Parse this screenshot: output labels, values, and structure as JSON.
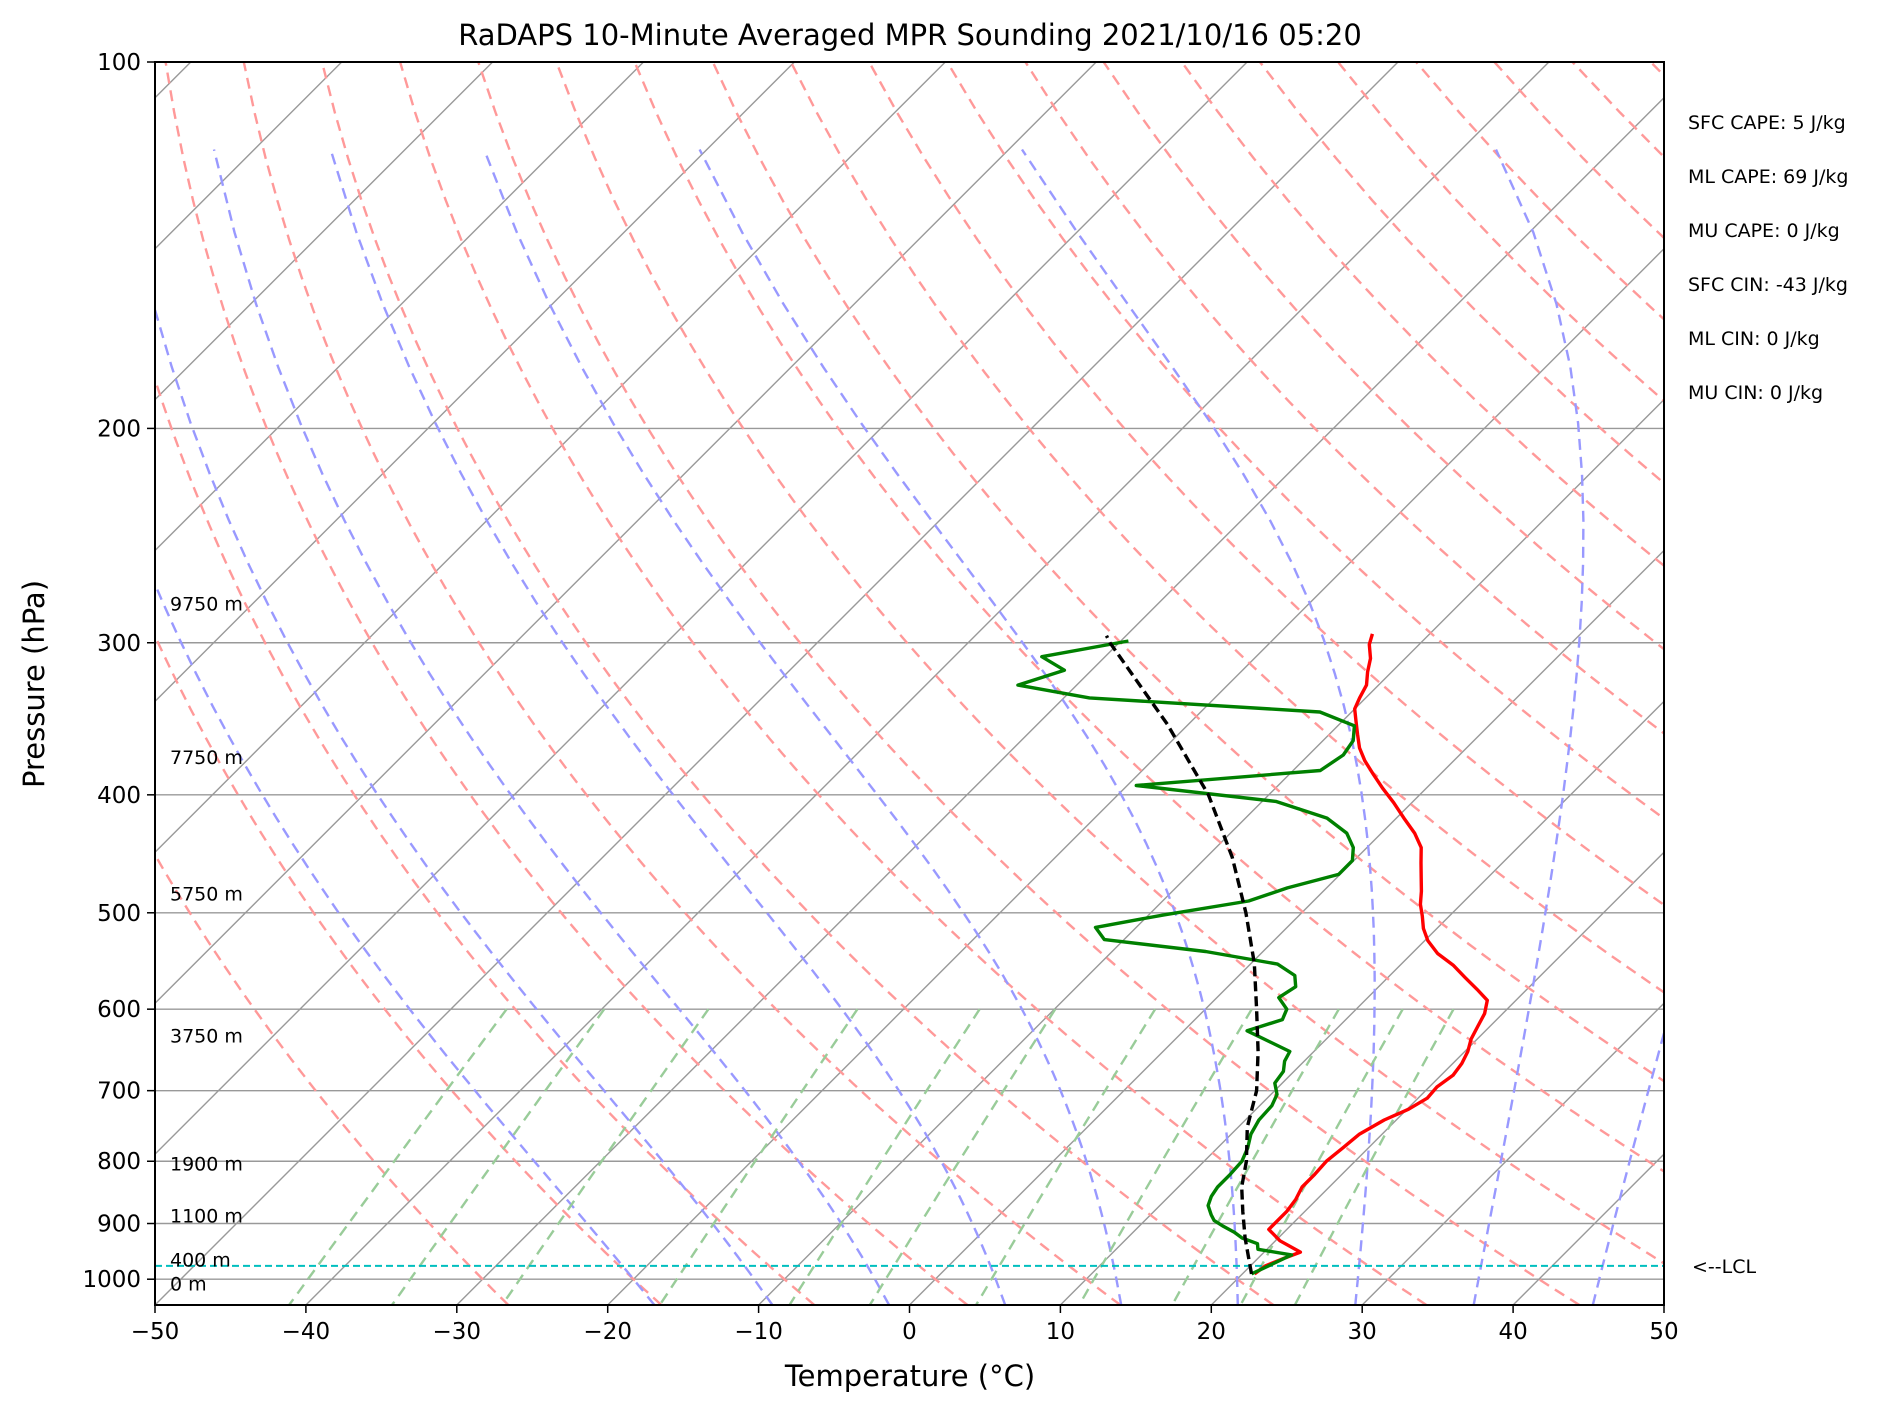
{
  "chart_data": {
    "type": "line",
    "title": "RaDAPS 10-Minute Averaged MPR Sounding 2021/10/16 05:20",
    "xlabel": "Temperature (°C)",
    "ylabel": "Pressure (hPa)",
    "xlim": [
      -50,
      50
    ],
    "ylim": [
      1050,
      100
    ],
    "y_scale": "log",
    "grid": true,
    "x_ticks": [
      -50,
      -40,
      -30,
      -20,
      -10,
      0,
      10,
      20,
      30,
      40,
      50
    ],
    "x_tick_labels": [
      "−50",
      "−40",
      "−30",
      "−20",
      "−10",
      "0",
      "10",
      "20",
      "30",
      "40",
      "50"
    ],
    "y_ticks": [
      100,
      200,
      300,
      400,
      500,
      600,
      700,
      800,
      900,
      1000
    ],
    "y_tick_labels": [
      "100",
      "200",
      "300",
      "400",
      "500",
      "600",
      "700",
      "800",
      "900",
      "1000"
    ],
    "colors": {
      "temperature": "#ff0000",
      "dewpoint": "#008000",
      "parcel": "#000000",
      "dry_adiabats": "#ff9999",
      "moist_adiabats": "#9999ff",
      "mixing_ratio": "#99cc99",
      "isotherms": "#999999",
      "lcl": "#00bfbf"
    },
    "series": [
      {
        "kind": "temperature",
        "points": [
          [
            20.8,
            990
          ],
          [
            21.0,
            975
          ],
          [
            21.8,
            960
          ],
          [
            22.4,
            950
          ],
          [
            20.3,
            930
          ],
          [
            18.8,
            910
          ],
          [
            18.8,
            880
          ],
          [
            18.6,
            860
          ],
          [
            18.2,
            840
          ],
          [
            18.2,
            820
          ],
          [
            18.1,
            800
          ],
          [
            18.3,
            780
          ],
          [
            18.5,
            760
          ],
          [
            19.2,
            740
          ],
          [
            20.1,
            725
          ],
          [
            20.6,
            710
          ],
          [
            20.5,
            695
          ],
          [
            20.8,
            680
          ],
          [
            20.6,
            665
          ],
          [
            20.2,
            650
          ],
          [
            19.6,
            635
          ],
          [
            19.2,
            620
          ],
          [
            18.8,
            605
          ],
          [
            18.1,
            590
          ],
          [
            16.7,
            578
          ],
          [
            15.1,
            565
          ],
          [
            13.5,
            552
          ],
          [
            11.7,
            540
          ],
          [
            10.2,
            527
          ],
          [
            9.1,
            515
          ],
          [
            8.2,
            503
          ],
          [
            7.3,
            492
          ],
          [
            6.5,
            480
          ],
          [
            5.6,
            468
          ],
          [
            4.6,
            455
          ],
          [
            3.6,
            442
          ],
          [
            2.2,
            430
          ],
          [
            0.5,
            418
          ],
          [
            -1.2,
            406
          ],
          [
            -2.9,
            395
          ],
          [
            -4.4,
            385
          ],
          [
            -5.9,
            375
          ],
          [
            -7.1,
            366
          ],
          [
            -8.1,
            357
          ],
          [
            -9.1,
            348
          ],
          [
            -10.0,
            340
          ],
          [
            -10.4,
            333
          ],
          [
            -10.8,
            325
          ],
          [
            -11.6,
            317
          ],
          [
            -12.3,
            309
          ],
          [
            -13.3,
            301
          ],
          [
            -13.8,
            295
          ]
        ]
      },
      {
        "kind": "dewpoint",
        "points": [
          [
            20.6,
            990
          ],
          [
            21.6,
            965
          ],
          [
            22.0,
            955
          ],
          [
            19.4,
            945
          ],
          [
            19.0,
            935
          ],
          [
            17.6,
            925
          ],
          [
            16.7,
            915
          ],
          [
            15.6,
            905
          ],
          [
            14.6,
            895
          ],
          [
            14.0,
            885
          ],
          [
            13.2,
            870
          ],
          [
            12.8,
            855
          ],
          [
            12.6,
            840
          ],
          [
            12.6,
            820
          ],
          [
            12.5,
            800
          ],
          [
            12.0,
            780
          ],
          [
            11.3,
            760
          ],
          [
            10.9,
            740
          ],
          [
            10.8,
            720
          ],
          [
            10.4,
            705
          ],
          [
            9.5,
            690
          ],
          [
            9.3,
            675
          ],
          [
            8.7,
            662
          ],
          [
            8.4,
            650
          ],
          [
            6.4,
            638
          ],
          [
            4.2,
            625
          ],
          [
            5.8,
            612
          ],
          [
            5.4,
            600
          ],
          [
            4.1,
            587
          ],
          [
            4.5,
            575
          ],
          [
            3.7,
            563
          ],
          [
            1.8,
            551
          ],
          [
            -3.8,
            538
          ],
          [
            -11.3,
            526
          ],
          [
            -12.7,
            514
          ],
          [
            -9.0,
            502
          ],
          [
            -4.3,
            489
          ],
          [
            -2.6,
            477
          ],
          [
            -0.1,
            465
          ],
          [
            -0.1,
            453
          ],
          [
            -0.9,
            442
          ],
          [
            -2.3,
            430
          ],
          [
            -4.6,
            418
          ],
          [
            -9.1,
            405
          ],
          [
            -19.4,
            393
          ],
          [
            -8.2,
            382
          ],
          [
            -7.7,
            371
          ],
          [
            -8.0,
            361
          ],
          [
            -8.9,
            351
          ],
          [
            -12.1,
            342
          ],
          [
            -28.3,
            333
          ],
          [
            -33.9,
            325
          ],
          [
            -31.8,
            316
          ],
          [
            -34.2,
            308
          ],
          [
            -29.5,
            299
          ]
        ]
      },
      {
        "kind": "parcel",
        "points": [
          [
            20.6,
            990
          ],
          [
            17.8,
            925
          ],
          [
            15.9,
            880
          ],
          [
            14.2,
            840
          ],
          [
            12.8,
            800
          ],
          [
            10.6,
            750
          ],
          [
            8.8,
            700
          ],
          [
            6.3,
            650
          ],
          [
            3.4,
            600
          ],
          [
            0.2,
            550
          ],
          [
            -3.7,
            500
          ],
          [
            -8.3,
            450
          ],
          [
            -14.0,
            400
          ],
          [
            -21.4,
            350
          ],
          [
            -30.6,
            300
          ],
          [
            -31.3,
            296
          ]
        ]
      }
    ],
    "height_labels": [
      {
        "text": "0 m",
        "p": 1010
      },
      {
        "text": "400 m",
        "p": 965
      },
      {
        "text": "1100 m",
        "p": 888
      },
      {
        "text": "1900 m",
        "p": 805
      },
      {
        "text": "3750 m",
        "p": 632
      },
      {
        "text": "5750 m",
        "p": 483
      },
      {
        "text": "7750 m",
        "p": 373
      },
      {
        "text": "9750 m",
        "p": 279
      }
    ],
    "lcl": {
      "label": "<--LCL",
      "p": 975
    },
    "indices": [
      "SFC CAPE: 5 J/kg",
      "ML CAPE: 69 J/kg",
      "MU CAPE: 0 J/kg",
      "SFC CIN: -43 J/kg",
      "ML CIN: 0 J/kg",
      "MU CIN: 0 J/kg"
    ]
  }
}
